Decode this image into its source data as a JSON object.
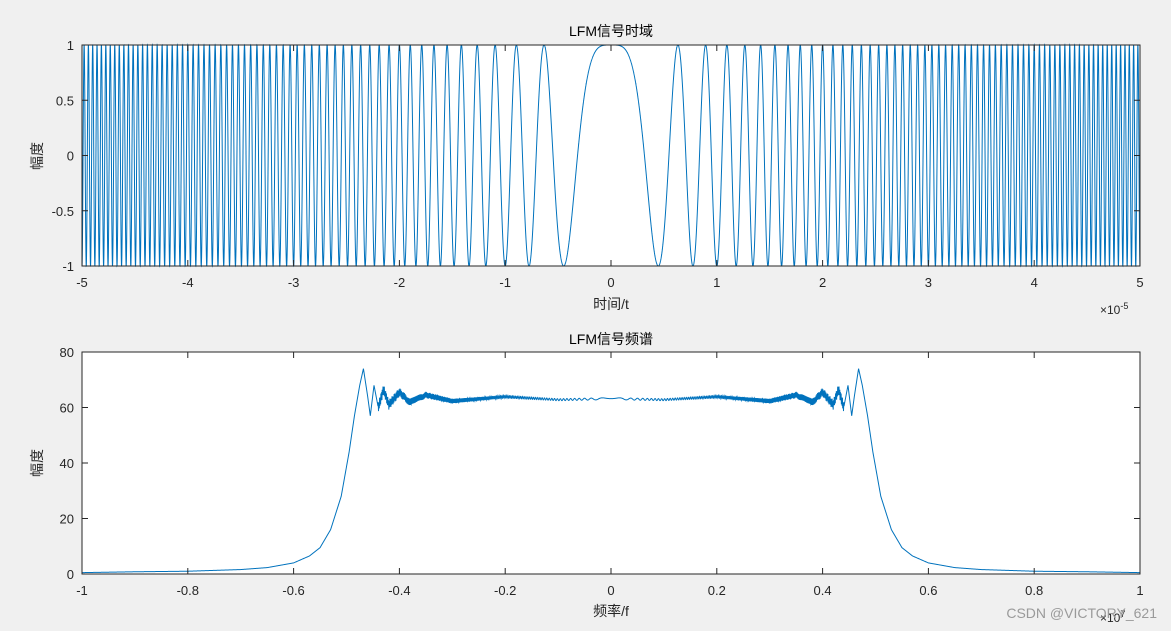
{
  "watermark": "CSDN @VICTORY_621",
  "colors": {
    "series": "#0072bd",
    "axis": "#262626",
    "background": "#f0f0f0",
    "plot_background": "#ffffff"
  },
  "chart_data": [
    {
      "type": "line",
      "title": "LFM信号时域",
      "xlabel": "时间/t",
      "ylabel": "幅度",
      "x_exponent": "×10",
      "x_exponent_power": "-5",
      "xlim": [
        -5,
        5
      ],
      "ylim": [
        -1,
        1
      ],
      "xticks": [
        "-5",
        "-4",
        "-3",
        "-2",
        "-1",
        "0",
        "1",
        "2",
        "3",
        "4",
        "5"
      ],
      "yticks": [
        "-1",
        "-0.5",
        "0",
        "0.5",
        "1"
      ],
      "grid": false,
      "series": [
        {
          "description": "cos(pi*K*t^2) chirp, frequency grows linearly with |t|; amplitude ±1",
          "function": "cos(pi*k*t^2)",
          "k_per_unit2": 5.0
        }
      ]
    },
    {
      "type": "line",
      "title": "LFM信号频谱",
      "xlabel": "频率/f",
      "ylabel": "幅度",
      "x_exponent": "×10",
      "x_exponent_power": "7",
      "xlim": [
        -1,
        1
      ],
      "ylim": [
        0,
        80
      ],
      "xticks": [
        "-1",
        "-0.8",
        "-0.6",
        "-0.4",
        "-0.2",
        "0",
        "0.2",
        "0.4",
        "0.6",
        "0.8",
        "1"
      ],
      "yticks": [
        "0",
        "20",
        "40",
        "60",
        "80"
      ],
      "grid": false,
      "series": [
        {
          "shape": "flat-top spectrum with Gibbs ripple",
          "points": [
            [
              -1.0,
              0.5
            ],
            [
              -0.9,
              0.8
            ],
            [
              -0.8,
              1.0
            ],
            [
              -0.7,
              1.6
            ],
            [
              -0.65,
              2.3
            ],
            [
              -0.6,
              4.0
            ],
            [
              -0.57,
              6.5
            ],
            [
              -0.55,
              9.5
            ],
            [
              -0.53,
              16
            ],
            [
              -0.51,
              28
            ],
            [
              -0.495,
              44
            ],
            [
              -0.485,
              57
            ],
            [
              -0.475,
              68
            ],
            [
              -0.468,
              74
            ],
            [
              -0.46,
              64
            ],
            [
              -0.455,
              57
            ],
            [
              -0.448,
              68
            ],
            [
              -0.44,
              60
            ],
            [
              -0.43,
              66.5
            ],
            [
              -0.42,
              61
            ],
            [
              -0.4,
              65.5
            ],
            [
              -0.38,
              61.8
            ],
            [
              -0.35,
              64.5
            ],
            [
              -0.3,
              62.3
            ],
            [
              -0.2,
              63.9
            ],
            [
              -0.1,
              62.8
            ],
            [
              0.0,
              63.2
            ],
            [
              0.1,
              62.8
            ],
            [
              0.2,
              63.9
            ],
            [
              0.3,
              62.3
            ],
            [
              0.35,
              64.5
            ],
            [
              0.38,
              61.8
            ],
            [
              0.4,
              65.5
            ],
            [
              0.42,
              61
            ],
            [
              0.43,
              66.5
            ],
            [
              0.44,
              60
            ],
            [
              0.448,
              68
            ],
            [
              0.455,
              57
            ],
            [
              0.46,
              64
            ],
            [
              0.468,
              74
            ],
            [
              0.475,
              68
            ],
            [
              0.485,
              57
            ],
            [
              0.495,
              44
            ],
            [
              0.51,
              28
            ],
            [
              0.53,
              16
            ],
            [
              0.55,
              9.5
            ],
            [
              0.57,
              6.5
            ],
            [
              0.6,
              4.0
            ],
            [
              0.65,
              2.3
            ],
            [
              0.7,
              1.6
            ],
            [
              0.8,
              1.0
            ],
            [
              0.9,
              0.8
            ],
            [
              1.0,
              0.5
            ]
          ]
        }
      ]
    }
  ]
}
